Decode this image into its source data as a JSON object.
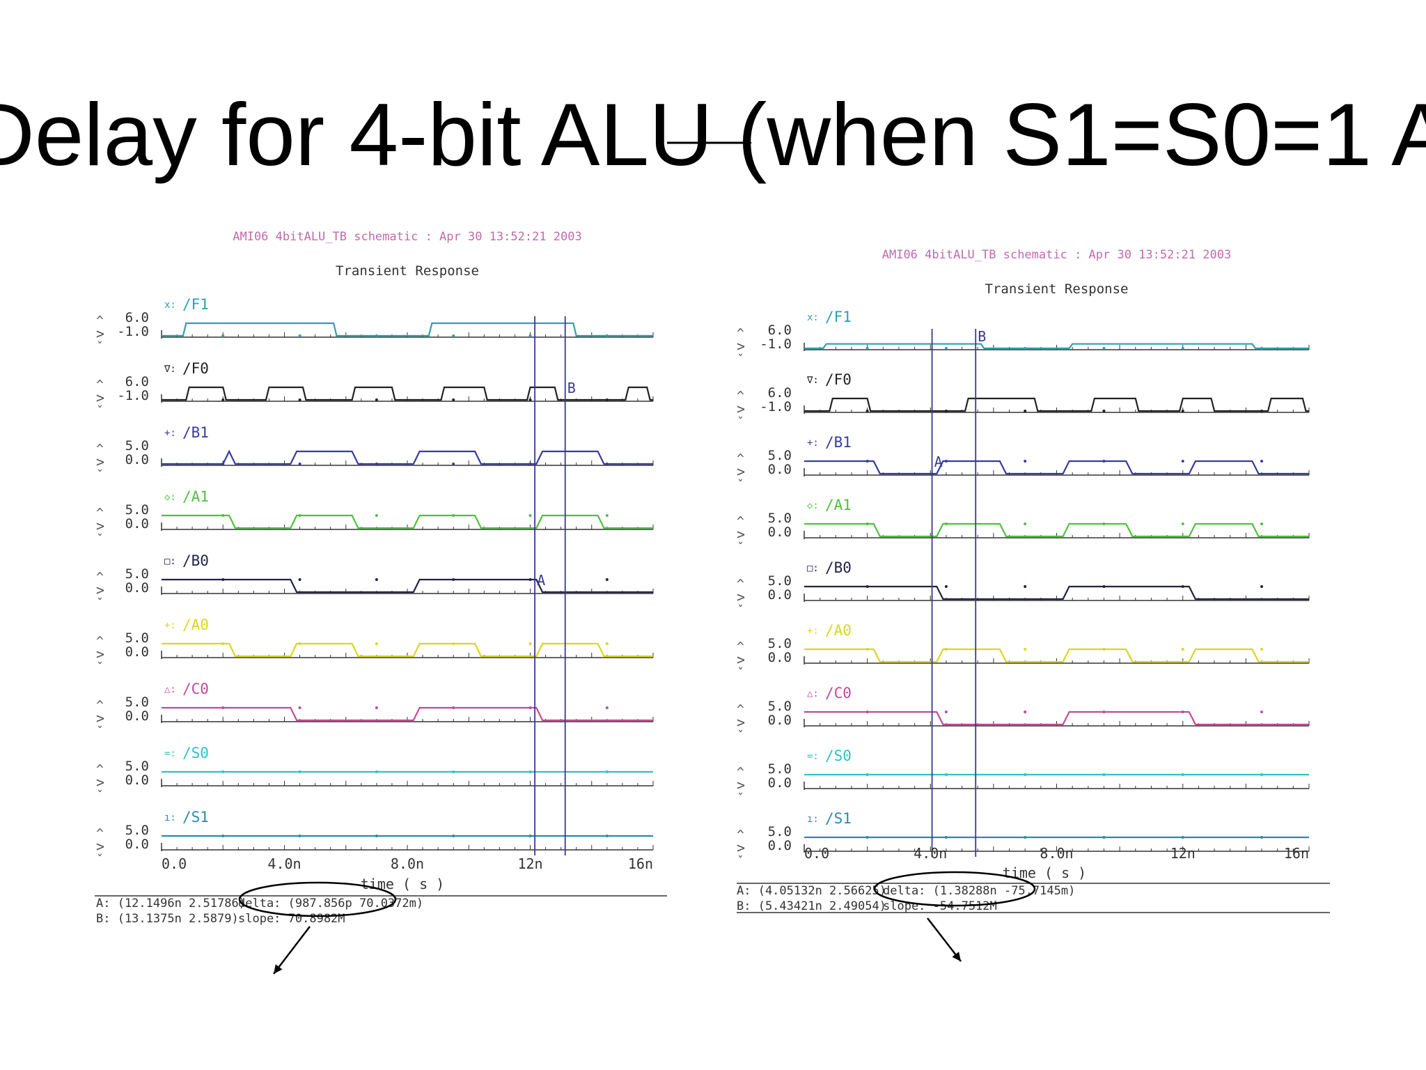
{
  "slide": {
    "title": "Delay for 4-bit ALU (when S1=S0=1 A"
  },
  "colors": {
    "header": "#c06aa8",
    "axis": "#333333",
    "cursor": "#3a3a8a"
  },
  "chart_data": [
    {
      "type": "line",
      "header": "AMI06 4bitALU_TB schematic : Apr 30 13:52:21 2003",
      "title": "Transient Response",
      "xlabel": "time ( s )",
      "x_ticks": [
        "0.0",
        "4.0n",
        "8.0n",
        "12n",
        "16n"
      ],
      "xlim": [
        0,
        16
      ],
      "signals": [
        {
          "name": "/F1",
          "marker": "x:",
          "ytop": "6.0",
          "ybottom": "-1.0",
          "color": "#2e9fb3",
          "analog": true,
          "edges": [
            [
              0.1,
              0
            ],
            [
              0.7,
              1
            ],
            [
              5.1,
              1
            ],
            [
              5.6,
              0
            ],
            [
              8.2,
              0
            ],
            [
              8.7,
              1
            ],
            [
              12.9,
              1
            ],
            [
              13.4,
              0
            ]
          ]
        },
        {
          "name": "/F0",
          "marker": "∇:",
          "ytop": "6.0",
          "ybottom": "-1.0",
          "color": "#222222",
          "analog": true,
          "edges": [
            [
              0.3,
              0
            ],
            [
              0.8,
              1
            ],
            [
              1.6,
              1
            ],
            [
              2.0,
              0
            ],
            [
              2.9,
              0
            ],
            [
              3.4,
              1
            ],
            [
              4.0,
              1
            ],
            [
              4.6,
              0
            ],
            [
              5.7,
              0
            ],
            [
              6.2,
              1
            ],
            [
              7.0,
              1
            ],
            [
              7.5,
              0
            ],
            [
              8.6,
              0
            ],
            [
              9.1,
              1
            ],
            [
              10.0,
              1
            ],
            [
              10.5,
              0
            ],
            [
              11.4,
              0
            ],
            [
              11.9,
              1
            ],
            [
              12.2,
              1
            ],
            [
              12.8,
              0
            ],
            [
              14.6,
              0
            ],
            [
              15.1,
              1
            ],
            [
              15.4,
              1
            ],
            [
              15.8,
              0
            ]
          ]
        },
        {
          "name": "/B1",
          "marker": "+:",
          "ytop": "5.0",
          "ybottom": "0.0",
          "color": "#3a3aa0",
          "edges": [
            [
              2.0,
              1
            ],
            [
              2.2,
              0
            ],
            [
              4.0,
              0
            ],
            [
              4.2,
              1
            ],
            [
              6.0,
              1
            ],
            [
              6.2,
              0
            ],
            [
              8.0,
              0
            ],
            [
              8.2,
              1
            ],
            [
              10.0,
              1
            ],
            [
              10.2,
              0
            ],
            [
              12.0,
              0
            ],
            [
              12.2,
              1
            ],
            [
              14.0,
              1
            ],
            [
              14.2,
              0
            ]
          ],
          "start": 0
        },
        {
          "name": "/A1",
          "marker": "◇:",
          "ytop": "5.0",
          "ybottom": "0.0",
          "color": "#4fc040",
          "edges": [
            [
              2.0,
              1
            ],
            [
              2.2,
              0
            ],
            [
              4.0,
              0
            ],
            [
              4.2,
              1
            ],
            [
              6.0,
              1
            ],
            [
              6.2,
              0
            ],
            [
              8.0,
              0
            ],
            [
              8.2,
              1
            ],
            [
              10.0,
              1
            ],
            [
              10.2,
              0
            ],
            [
              12.0,
              0
            ],
            [
              12.2,
              1
            ],
            [
              14.0,
              1
            ],
            [
              14.2,
              0
            ]
          ],
          "start": 1
        },
        {
          "name": "/B0",
          "marker": "□:",
          "ytop": "5.0",
          "ybottom": "0.0",
          "color": "#222244",
          "edges": [
            [
              4.0,
              1
            ],
            [
              4.2,
              0
            ],
            [
              8.0,
              0
            ],
            [
              8.2,
              1
            ],
            [
              12.0,
              1
            ],
            [
              12.2,
              0
            ]
          ],
          "start": 1
        },
        {
          "name": "/A0",
          "marker": "+:",
          "ytop": "5.0",
          "ybottom": "0.0",
          "color": "#d8d820",
          "edges": [
            [
              2.0,
              1
            ],
            [
              2.2,
              0
            ],
            [
              4.0,
              0
            ],
            [
              4.2,
              1
            ],
            [
              6.0,
              1
            ],
            [
              6.2,
              0
            ],
            [
              8.0,
              0
            ],
            [
              8.2,
              1
            ],
            [
              10.0,
              1
            ],
            [
              10.2,
              0
            ],
            [
              12.0,
              0
            ],
            [
              12.2,
              1
            ],
            [
              14.0,
              1
            ],
            [
              14.2,
              0
            ]
          ],
          "start": 1
        },
        {
          "name": "/C0",
          "marker": "△:",
          "ytop": "5.0",
          "ybottom": "0.0",
          "color": "#c04a9a",
          "edges": [
            [
              4.0,
              1
            ],
            [
              4.2,
              0
            ],
            [
              8.0,
              0
            ],
            [
              8.2,
              1
            ],
            [
              12.0,
              1
            ],
            [
              12.2,
              0
            ]
          ],
          "start": 1
        },
        {
          "name": "/S0",
          "marker": "=:",
          "ytop": "5.0",
          "ybottom": "0.0",
          "color": "#30c0c8",
          "start": 1,
          "edges": []
        },
        {
          "name": "/S1",
          "marker": "ı:",
          "ytop": "5.0",
          "ybottom": "0.0",
          "color": "#2a8ab0",
          "start": 1,
          "edges": []
        }
      ],
      "cursors": [
        {
          "label": "A",
          "x": 12.1496,
          "signal": "/B0"
        },
        {
          "label": "B",
          "x": 13.1375,
          "signal": "/F0"
        }
      ],
      "readout": {
        "a": "A: (12.1496n 2.51786)",
        "b": "B: (13.1375n 2.5879)",
        "delta": "delta: (987.856p 70.0372m)",
        "slope": "slope: 70.8982M"
      }
    },
    {
      "type": "line",
      "header": "AMI06 4bitALU_TB schematic : Apr 30 13:52:21 2003",
      "title": "Transient Response",
      "xlabel": "time ( s )",
      "x_ticks": [
        "0.0",
        "4.0n",
        "8.0n",
        "12n",
        "16n"
      ],
      "xlim": [
        0,
        16
      ],
      "signals": [
        {
          "name": "/F1",
          "marker": "x:",
          "ytop": "6.0",
          "ybottom": "-1.0",
          "color": "#2e9fb3",
          "analog": true,
          "edges": [
            [
              0.1,
              0
            ],
            [
              0.6,
              0.35
            ],
            [
              5.2,
              0.35
            ],
            [
              5.6,
              0
            ],
            [
              8.0,
              0
            ],
            [
              8.4,
              0.35
            ],
            [
              13.8,
              0.35
            ],
            [
              14.2,
              0
            ]
          ]
        },
        {
          "name": "/F0",
          "marker": "∇:",
          "ytop": "6.0",
          "ybottom": "-1.0",
          "color": "#222222",
          "analog": true,
          "edges": [
            [
              0.3,
              0
            ],
            [
              0.8,
              1
            ],
            [
              1.6,
              1
            ],
            [
              2.0,
              0
            ],
            [
              4.6,
              0
            ],
            [
              5.1,
              1
            ],
            [
              6.8,
              1
            ],
            [
              7.3,
              0
            ],
            [
              8.6,
              0
            ],
            [
              9.1,
              1
            ],
            [
              10.0,
              1
            ],
            [
              10.5,
              0
            ],
            [
              11.4,
              0
            ],
            [
              11.9,
              1
            ],
            [
              12.4,
              1
            ],
            [
              12.9,
              0
            ],
            [
              14.2,
              0
            ],
            [
              14.7,
              1
            ],
            [
              15.4,
              1
            ],
            [
              15.8,
              0
            ]
          ]
        },
        {
          "name": "/B1",
          "marker": "+:",
          "ytop": "5.0",
          "ybottom": "0.0",
          "color": "#3a3aa0",
          "edges": [
            [
              2.0,
              1
            ],
            [
              2.2,
              0
            ],
            [
              4.0,
              0
            ],
            [
              4.2,
              1
            ],
            [
              6.0,
              1
            ],
            [
              6.2,
              0
            ],
            [
              8.0,
              0
            ],
            [
              8.2,
              1
            ],
            [
              10.0,
              1
            ],
            [
              10.2,
              0
            ],
            [
              12.0,
              0
            ],
            [
              12.2,
              1
            ],
            [
              14.0,
              1
            ],
            [
              14.2,
              0
            ]
          ],
          "start": 1
        },
        {
          "name": "/A1",
          "marker": "◇:",
          "ytop": "5.0",
          "ybottom": "0.0",
          "color": "#4fc040",
          "edges": [
            [
              2.0,
              1
            ],
            [
              2.2,
              0
            ],
            [
              4.0,
              0
            ],
            [
              4.2,
              1
            ],
            [
              6.0,
              1
            ],
            [
              6.2,
              0
            ],
            [
              8.0,
              0
            ],
            [
              8.2,
              1
            ],
            [
              10.0,
              1
            ],
            [
              10.2,
              0
            ],
            [
              12.0,
              0
            ],
            [
              12.2,
              1
            ],
            [
              14.0,
              1
            ],
            [
              14.2,
              0
            ]
          ],
          "start": 1
        },
        {
          "name": "/B0",
          "marker": "□:",
          "ytop": "5.0",
          "ybottom": "0.0",
          "color": "#222244",
          "edges": [
            [
              4.0,
              1
            ],
            [
              4.2,
              0
            ],
            [
              8.0,
              0
            ],
            [
              8.2,
              1
            ],
            [
              12.0,
              1
            ],
            [
              12.2,
              0
            ]
          ],
          "start": 1
        },
        {
          "name": "/A0",
          "marker": "+:",
          "ytop": "5.0",
          "ybottom": "0.0",
          "color": "#d8d820",
          "edges": [
            [
              2.0,
              1
            ],
            [
              2.2,
              0
            ],
            [
              4.0,
              0
            ],
            [
              4.2,
              1
            ],
            [
              6.0,
              1
            ],
            [
              6.2,
              0
            ],
            [
              8.0,
              0
            ],
            [
              8.2,
              1
            ],
            [
              10.0,
              1
            ],
            [
              10.2,
              0
            ],
            [
              12.0,
              0
            ],
            [
              12.2,
              1
            ],
            [
              14.0,
              1
            ],
            [
              14.2,
              0
            ]
          ],
          "start": 1
        },
        {
          "name": "/C0",
          "marker": "△:",
          "ytop": "5.0",
          "ybottom": "0.0",
          "color": "#c04a9a",
          "edges": [
            [
              4.0,
              1
            ],
            [
              4.2,
              0
            ],
            [
              8.0,
              0
            ],
            [
              8.2,
              1
            ],
            [
              12.0,
              1
            ],
            [
              12.2,
              0
            ]
          ],
          "start": 1
        },
        {
          "name": "/S0",
          "marker": "=:",
          "ytop": "5.0",
          "ybottom": "0.0",
          "color": "#30c0c8",
          "start": 1,
          "edges": []
        },
        {
          "name": "/S1",
          "marker": "ı:",
          "ytop": "5.0",
          "ybottom": "0.0",
          "color": "#2a8ab0",
          "start": 1,
          "edges": []
        }
      ],
      "cursors": [
        {
          "label": "A",
          "x": 4.05132,
          "signal": "/B1"
        },
        {
          "label": "B",
          "x": 5.43421,
          "signal": "/F1"
        }
      ],
      "readout": {
        "a": "A: (4.05132n 2.56625)",
        "b": "B: (5.43421n 2.49054)",
        "delta": "delta: (1.38288n -75.7145m)",
        "slope": "slope: -54.7512M"
      }
    }
  ]
}
